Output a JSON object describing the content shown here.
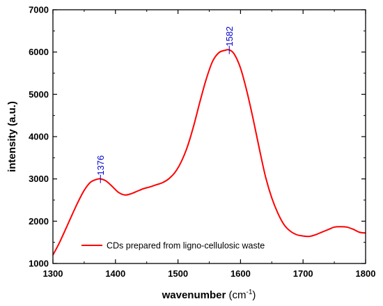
{
  "chart_data": {
    "type": "line",
    "title": "",
    "xlabel_main": "wavenumber",
    "xlabel_unit_open": " (cm",
    "xlabel_unit_sup": "-1",
    "xlabel_unit_close": ")",
    "ylabel": "intensity (a.u.)",
    "xlim": [
      1300,
      1800
    ],
    "ylim": [
      1000,
      7000
    ],
    "xticks": [
      1300,
      1400,
      1500,
      1600,
      1700,
      1800
    ],
    "yticks": [
      1000,
      2000,
      3000,
      4000,
      5000,
      6000,
      7000
    ],
    "grid": false,
    "legend_position": "bottom-left",
    "series": [
      {
        "name": "CDs prepared from ligno-cellulosic waste",
        "color": "#ff0000",
        "x": [
          1300,
          1310,
          1320,
          1330,
          1340,
          1350,
          1360,
          1370,
          1376,
          1385,
          1395,
          1405,
          1415,
          1425,
          1435,
          1445,
          1455,
          1465,
          1475,
          1485,
          1495,
          1505,
          1515,
          1525,
          1535,
          1545,
          1555,
          1565,
          1575,
          1582,
          1590,
          1600,
          1610,
          1620,
          1630,
          1640,
          1650,
          1660,
          1670,
          1680,
          1690,
          1700,
          1710,
          1720,
          1730,
          1740,
          1750,
          1760,
          1770,
          1780,
          1790,
          1800
        ],
        "y": [
          1200,
          1480,
          1800,
          2130,
          2450,
          2730,
          2920,
          2990,
          3000,
          2950,
          2820,
          2680,
          2620,
          2650,
          2710,
          2770,
          2810,
          2860,
          2910,
          3000,
          3150,
          3400,
          3760,
          4250,
          4820,
          5350,
          5770,
          5980,
          6040,
          6050,
          5950,
          5620,
          5080,
          4430,
          3720,
          3050,
          2550,
          2180,
          1910,
          1760,
          1680,
          1650,
          1640,
          1680,
          1740,
          1800,
          1860,
          1870,
          1860,
          1810,
          1740,
          1720
        ]
      }
    ],
    "annotations": [
      {
        "x": 1376,
        "y": 3000,
        "text": "1376",
        "color": "#0000cc"
      },
      {
        "x": 1582,
        "y": 6050,
        "text": "1582",
        "color": "#0000cc"
      }
    ]
  }
}
